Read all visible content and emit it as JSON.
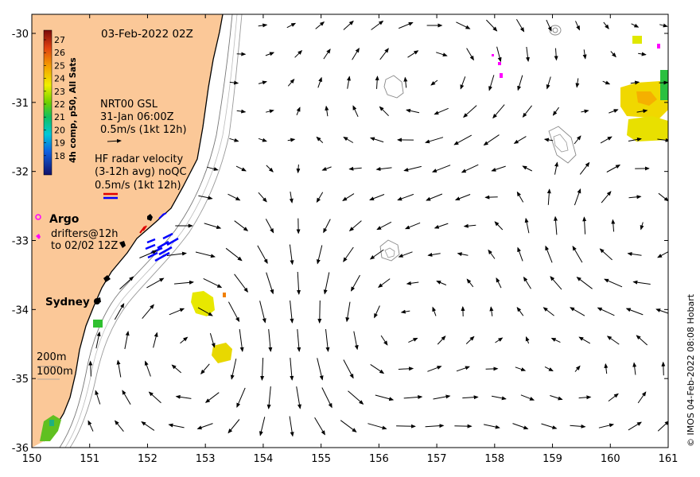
{
  "map": {
    "title": "03-Feb-2022 02Z",
    "credit": "© IMOS 04-Feb-2022 08:08 Hobart",
    "x_ticks": [
      "150",
      "151",
      "152",
      "153",
      "154",
      "155",
      "156",
      "157",
      "158",
      "159",
      "160",
      "161"
    ],
    "y_ticks": [
      "-30",
      "-31",
      "-32",
      "-33",
      "-34",
      "-35",
      "-36"
    ],
    "colorbar": {
      "label": "4h comp, p50, All Sats",
      "ticks": [
        "27",
        "26",
        "25",
        "24",
        "23",
        "22",
        "21",
        "20",
        "19",
        "18"
      ]
    },
    "legend": {
      "model_line1": "NRT00 GSL",
      "model_line2": "31-Jan 06:00Z",
      "model_line3": "0.5m/s (1kt 12h)",
      "radar_line1": "HF radar velocity",
      "radar_line2": "(3-12h avg) noQC",
      "radar_line3": "0.5m/s (1kt 12h)",
      "argo_label": "Argo",
      "drifters_line1": "drifters@12h",
      "drifters_line2": "to 02/02 12Z"
    },
    "place_label": "Sydney",
    "isobath_labels": [
      "200m",
      "1000m"
    ],
    "colors": {
      "land": "#fbc898",
      "argo": "#ff00ff",
      "radar_red": "#e00000",
      "radar_blue": "#0000ff"
    }
  }
}
